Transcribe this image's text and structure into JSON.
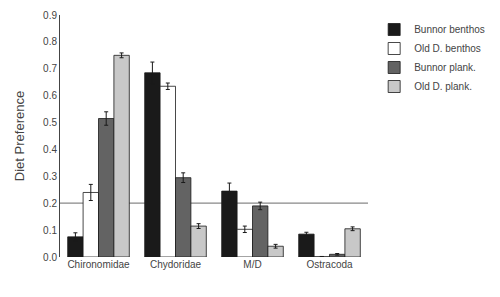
{
  "chart_data": {
    "type": "bar",
    "categories": [
      "Chironomidae",
      "Chydoridae",
      "M/D",
      "Ostracoda"
    ],
    "series": [
      {
        "name": "Bunnor benthos",
        "color": "#1a1a1a",
        "values": [
          0.075,
          0.685,
          0.245,
          0.085
        ],
        "errors": [
          0.015,
          0.04,
          0.03,
          0.007
        ]
      },
      {
        "name": "Old D. benthos",
        "color": "#ffffff",
        "values": [
          0.24,
          0.635,
          0.103,
          0.001
        ],
        "errors": [
          0.03,
          0.012,
          0.012,
          0.001
        ]
      },
      {
        "name": "Bunnor plank.",
        "color": "#636363",
        "values": [
          0.515,
          0.295,
          0.19,
          0.01
        ],
        "errors": [
          0.025,
          0.018,
          0.014,
          0.003
        ]
      },
      {
        "name": "Old D. plank.",
        "color": "#c8c8c8",
        "values": [
          0.75,
          0.115,
          0.04,
          0.105
        ],
        "errors": [
          0.009,
          0.009,
          0.007,
          0.007
        ]
      }
    ],
    "ylabel": "Diet Preference",
    "ylim": [
      0,
      0.9
    ],
    "yticks": [
      {
        "value": 0,
        "label": "0.0"
      },
      0.1,
      0.2,
      0.3,
      0.4,
      0.5,
      0.6,
      0.7,
      0.8,
      0.9
    ],
    "reference_line": {
      "value": 0.2,
      "color": "#888888"
    },
    "grid": false,
    "legend": "right"
  }
}
